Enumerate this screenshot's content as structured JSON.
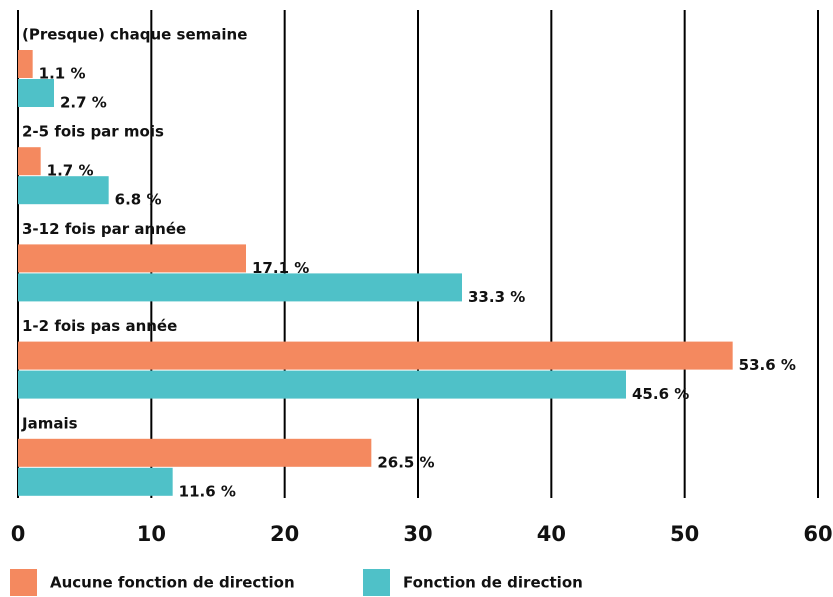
{
  "chart_data": {
    "type": "bar",
    "orientation": "horizontal",
    "categories": [
      "(Presque) chaque semaine",
      "2-5 fois par mois",
      "3-12 fois par année",
      "1-2 fois pas année",
      "Jamais"
    ],
    "series": [
      {
        "name": "Aucune fonction de direction",
        "color": "#f4895f",
        "values": [
          1.1,
          1.7,
          17.1,
          53.6,
          26.5
        ],
        "value_labels": [
          "1.1 %",
          "1.7 %",
          "17.1 %",
          "53.6 %",
          "26.5 %"
        ]
      },
      {
        "name": "Fonction de direction",
        "color": "#4fc1c8",
        "values": [
          2.7,
          6.8,
          33.3,
          45.6,
          11.6
        ],
        "value_labels": [
          "2.7 %",
          "6.8 %",
          "33.3 %",
          "45.6 %",
          "11.6 %"
        ]
      }
    ],
    "xlim": [
      0,
      60
    ],
    "xticks": [
      0,
      10,
      20,
      30,
      40,
      50,
      60
    ],
    "grid": true,
    "legend": "bottom"
  }
}
